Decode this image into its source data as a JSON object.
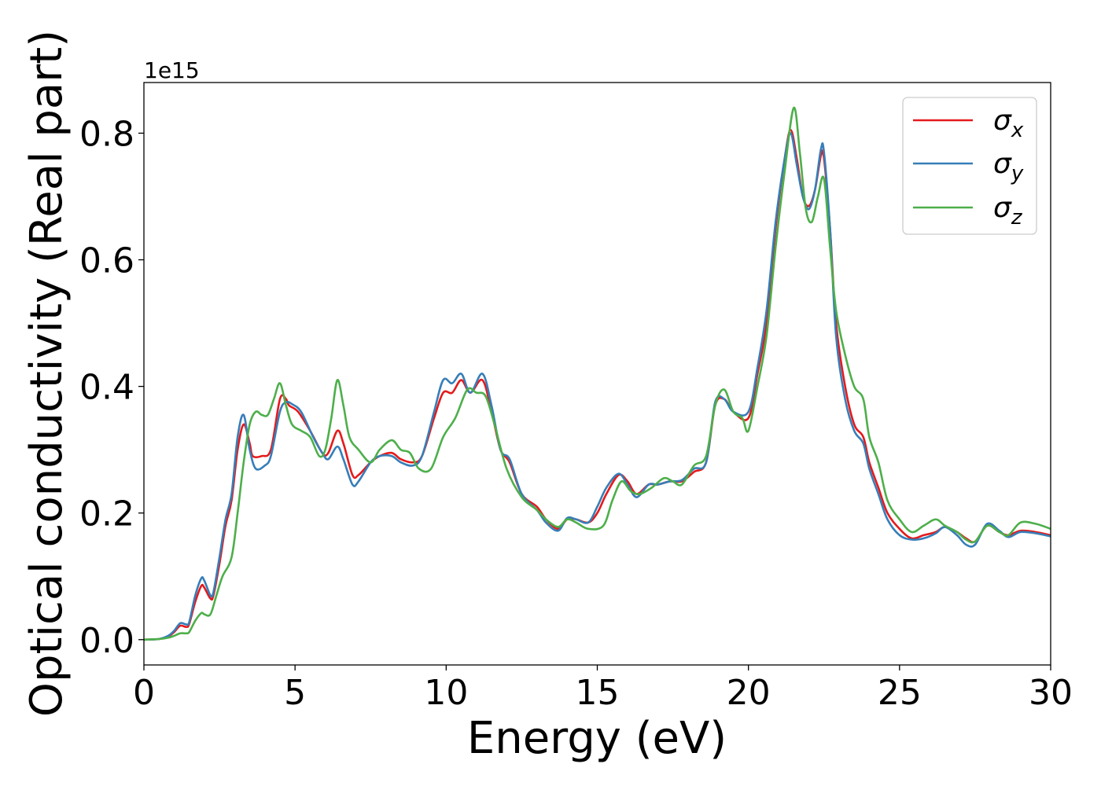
{
  "chart_data": {
    "type": "line",
    "xlabel": "Energy (eV)",
    "ylabel": "Optical conductivity (Real part)",
    "y_offset_label": "1e15",
    "xlim": [
      0,
      30
    ],
    "ylim": [
      -0.04,
      0.88
    ],
    "x_ticks": [
      0,
      5,
      10,
      15,
      20,
      25,
      30
    ],
    "x_tick_labels": [
      "0",
      "5",
      "10",
      "15",
      "20",
      "25",
      "30"
    ],
    "y_ticks": [
      0.0,
      0.2,
      0.4,
      0.6,
      0.8
    ],
    "y_tick_labels": [
      "0.0",
      "0.2",
      "0.4",
      "0.6",
      "0.8"
    ],
    "grid": false,
    "legend_position": "top-right",
    "series": [
      {
        "name": "σx",
        "legend_base": "σ",
        "legend_sub": "x",
        "color": "#e41a1c",
        "points": [
          [
            0,
            0
          ],
          [
            0.5,
            0.001
          ],
          [
            0.8,
            0.005
          ],
          [
            1.0,
            0.012
          ],
          [
            1.2,
            0.022
          ],
          [
            1.4,
            0.02
          ],
          [
            1.5,
            0.025
          ],
          [
            1.7,
            0.06
          ],
          [
            1.9,
            0.085
          ],
          [
            2.0,
            0.082
          ],
          [
            2.2,
            0.065
          ],
          [
            2.3,
            0.07
          ],
          [
            2.5,
            0.12
          ],
          [
            2.7,
            0.18
          ],
          [
            2.9,
            0.22
          ],
          [
            3.1,
            0.3
          ],
          [
            3.3,
            0.34
          ],
          [
            3.5,
            0.31
          ],
          [
            3.6,
            0.29
          ],
          [
            3.9,
            0.29
          ],
          [
            4.2,
            0.3
          ],
          [
            4.5,
            0.38
          ],
          [
            4.7,
            0.38
          ],
          [
            4.8,
            0.37
          ],
          [
            5.1,
            0.36
          ],
          [
            5.5,
            0.33
          ],
          [
            5.9,
            0.295
          ],
          [
            6.1,
            0.295
          ],
          [
            6.4,
            0.33
          ],
          [
            6.6,
            0.31
          ],
          [
            6.9,
            0.26
          ],
          [
            7.1,
            0.26
          ],
          [
            7.5,
            0.28
          ],
          [
            7.8,
            0.29
          ],
          [
            8.2,
            0.295
          ],
          [
            8.5,
            0.285
          ],
          [
            8.9,
            0.28
          ],
          [
            9.2,
            0.29
          ],
          [
            9.6,
            0.35
          ],
          [
            9.9,
            0.39
          ],
          [
            10.2,
            0.39
          ],
          [
            10.5,
            0.41
          ],
          [
            10.8,
            0.39
          ],
          [
            11.2,
            0.41
          ],
          [
            11.5,
            0.36
          ],
          [
            11.8,
            0.3
          ],
          [
            12.1,
            0.28
          ],
          [
            12.5,
            0.23
          ],
          [
            13.0,
            0.21
          ],
          [
            13.3,
            0.19
          ],
          [
            13.7,
            0.175
          ],
          [
            14.0,
            0.19
          ],
          [
            14.3,
            0.19
          ],
          [
            14.7,
            0.185
          ],
          [
            15.0,
            0.2
          ],
          [
            15.3,
            0.23
          ],
          [
            15.7,
            0.26
          ],
          [
            16.0,
            0.25
          ],
          [
            16.3,
            0.23
          ],
          [
            16.7,
            0.245
          ],
          [
            17.0,
            0.245
          ],
          [
            17.4,
            0.25
          ],
          [
            17.8,
            0.25
          ],
          [
            18.2,
            0.265
          ],
          [
            18.6,
            0.28
          ],
          [
            18.9,
            0.37
          ],
          [
            19.2,
            0.38
          ],
          [
            19.5,
            0.36
          ],
          [
            20.0,
            0.35
          ],
          [
            20.3,
            0.42
          ],
          [
            20.6,
            0.5
          ],
          [
            20.9,
            0.65
          ],
          [
            21.2,
            0.76
          ],
          [
            21.4,
            0.805
          ],
          [
            21.6,
            0.76
          ],
          [
            21.8,
            0.7
          ],
          [
            22.0,
            0.685
          ],
          [
            22.2,
            0.71
          ],
          [
            22.4,
            0.765
          ],
          [
            22.5,
            0.76
          ],
          [
            22.7,
            0.65
          ],
          [
            22.9,
            0.5
          ],
          [
            23.2,
            0.4
          ],
          [
            23.5,
            0.34
          ],
          [
            23.8,
            0.32
          ],
          [
            24.0,
            0.28
          ],
          [
            24.3,
            0.24
          ],
          [
            24.6,
            0.2
          ],
          [
            25.0,
            0.175
          ],
          [
            25.4,
            0.16
          ],
          [
            25.8,
            0.165
          ],
          [
            26.2,
            0.17
          ],
          [
            26.5,
            0.178
          ],
          [
            26.9,
            0.17
          ],
          [
            27.2,
            0.16
          ],
          [
            27.5,
            0.155
          ],
          [
            27.9,
            0.18
          ],
          [
            28.3,
            0.17
          ],
          [
            28.6,
            0.165
          ],
          [
            29.0,
            0.172
          ],
          [
            29.5,
            0.17
          ],
          [
            30,
            0.165
          ]
        ]
      },
      {
        "name": "σy",
        "legend_base": "σ",
        "legend_sub": "y",
        "color": "#377eb8",
        "points": [
          [
            0,
            0
          ],
          [
            0.5,
            0.001
          ],
          [
            0.8,
            0.006
          ],
          [
            1.0,
            0.014
          ],
          [
            1.2,
            0.026
          ],
          [
            1.4,
            0.024
          ],
          [
            1.5,
            0.028
          ],
          [
            1.7,
            0.07
          ],
          [
            1.9,
            0.097
          ],
          [
            2.0,
            0.093
          ],
          [
            2.2,
            0.07
          ],
          [
            2.3,
            0.075
          ],
          [
            2.5,
            0.13
          ],
          [
            2.7,
            0.19
          ],
          [
            2.9,
            0.23
          ],
          [
            3.1,
            0.32
          ],
          [
            3.3,
            0.355
          ],
          [
            3.5,
            0.3
          ],
          [
            3.7,
            0.27
          ],
          [
            4.0,
            0.275
          ],
          [
            4.2,
            0.29
          ],
          [
            4.5,
            0.36
          ],
          [
            4.7,
            0.375
          ],
          [
            4.9,
            0.372
          ],
          [
            5.2,
            0.36
          ],
          [
            5.6,
            0.32
          ],
          [
            5.9,
            0.295
          ],
          [
            6.1,
            0.285
          ],
          [
            6.4,
            0.305
          ],
          [
            6.6,
            0.285
          ],
          [
            6.9,
            0.245
          ],
          [
            7.1,
            0.25
          ],
          [
            7.5,
            0.28
          ],
          [
            7.8,
            0.29
          ],
          [
            8.2,
            0.29
          ],
          [
            8.5,
            0.28
          ],
          [
            8.9,
            0.275
          ],
          [
            9.2,
            0.29
          ],
          [
            9.6,
            0.36
          ],
          [
            9.9,
            0.41
          ],
          [
            10.2,
            0.405
          ],
          [
            10.5,
            0.42
          ],
          [
            10.8,
            0.39
          ],
          [
            11.2,
            0.42
          ],
          [
            11.5,
            0.37
          ],
          [
            11.8,
            0.3
          ],
          [
            12.1,
            0.285
          ],
          [
            12.5,
            0.23
          ],
          [
            13.0,
            0.205
          ],
          [
            13.3,
            0.185
          ],
          [
            13.7,
            0.172
          ],
          [
            14.0,
            0.192
          ],
          [
            14.3,
            0.19
          ],
          [
            14.7,
            0.185
          ],
          [
            15.0,
            0.21
          ],
          [
            15.3,
            0.24
          ],
          [
            15.7,
            0.262
          ],
          [
            16.0,
            0.245
          ],
          [
            16.3,
            0.225
          ],
          [
            16.7,
            0.245
          ],
          [
            17.0,
            0.245
          ],
          [
            17.4,
            0.25
          ],
          [
            17.8,
            0.252
          ],
          [
            18.2,
            0.27
          ],
          [
            18.6,
            0.28
          ],
          [
            18.9,
            0.375
          ],
          [
            19.2,
            0.38
          ],
          [
            19.5,
            0.36
          ],
          [
            20.0,
            0.36
          ],
          [
            20.3,
            0.43
          ],
          [
            20.6,
            0.52
          ],
          [
            20.9,
            0.66
          ],
          [
            21.2,
            0.76
          ],
          [
            21.4,
            0.8
          ],
          [
            21.6,
            0.75
          ],
          [
            21.8,
            0.7
          ],
          [
            22.0,
            0.68
          ],
          [
            22.2,
            0.71
          ],
          [
            22.4,
            0.775
          ],
          [
            22.5,
            0.77
          ],
          [
            22.7,
            0.65
          ],
          [
            22.9,
            0.48
          ],
          [
            23.2,
            0.38
          ],
          [
            23.5,
            0.33
          ],
          [
            23.8,
            0.31
          ],
          [
            24.0,
            0.27
          ],
          [
            24.3,
            0.23
          ],
          [
            24.6,
            0.19
          ],
          [
            25.0,
            0.165
          ],
          [
            25.4,
            0.158
          ],
          [
            25.8,
            0.16
          ],
          [
            26.2,
            0.168
          ],
          [
            26.5,
            0.178
          ],
          [
            26.9,
            0.165
          ],
          [
            27.2,
            0.15
          ],
          [
            27.5,
            0.15
          ],
          [
            27.9,
            0.183
          ],
          [
            28.3,
            0.172
          ],
          [
            28.6,
            0.162
          ],
          [
            29.0,
            0.17
          ],
          [
            29.5,
            0.168
          ],
          [
            30,
            0.163
          ]
        ]
      },
      {
        "name": "σz",
        "legend_base": "σ",
        "legend_sub": "z",
        "color": "#4daf4a",
        "points": [
          [
            0,
            0
          ],
          [
            0.5,
            0.001
          ],
          [
            0.8,
            0.003
          ],
          [
            1.0,
            0.006
          ],
          [
            1.2,
            0.01
          ],
          [
            1.4,
            0.01
          ],
          [
            1.5,
            0.012
          ],
          [
            1.7,
            0.03
          ],
          [
            1.9,
            0.042
          ],
          [
            2.0,
            0.04
          ],
          [
            2.2,
            0.04
          ],
          [
            2.4,
            0.07
          ],
          [
            2.6,
            0.1
          ],
          [
            2.9,
            0.13
          ],
          [
            3.1,
            0.2
          ],
          [
            3.3,
            0.28
          ],
          [
            3.5,
            0.34
          ],
          [
            3.7,
            0.36
          ],
          [
            3.9,
            0.355
          ],
          [
            4.1,
            0.355
          ],
          [
            4.3,
            0.38
          ],
          [
            4.5,
            0.405
          ],
          [
            4.7,
            0.37
          ],
          [
            4.9,
            0.34
          ],
          [
            5.2,
            0.33
          ],
          [
            5.5,
            0.32
          ],
          [
            5.8,
            0.29
          ],
          [
            6.0,
            0.3
          ],
          [
            6.2,
            0.35
          ],
          [
            6.4,
            0.41
          ],
          [
            6.6,
            0.37
          ],
          [
            6.8,
            0.32
          ],
          [
            7.1,
            0.3
          ],
          [
            7.5,
            0.28
          ],
          [
            7.8,
            0.3
          ],
          [
            8.2,
            0.315
          ],
          [
            8.5,
            0.3
          ],
          [
            8.8,
            0.295
          ],
          [
            9.1,
            0.27
          ],
          [
            9.5,
            0.27
          ],
          [
            9.9,
            0.32
          ],
          [
            10.3,
            0.35
          ],
          [
            10.7,
            0.395
          ],
          [
            11.0,
            0.39
          ],
          [
            11.3,
            0.385
          ],
          [
            11.6,
            0.34
          ],
          [
            12.0,
            0.27
          ],
          [
            12.5,
            0.225
          ],
          [
            13.0,
            0.205
          ],
          [
            13.3,
            0.19
          ],
          [
            13.7,
            0.178
          ],
          [
            14.0,
            0.19
          ],
          [
            14.3,
            0.185
          ],
          [
            14.7,
            0.175
          ],
          [
            15.2,
            0.18
          ],
          [
            15.5,
            0.22
          ],
          [
            15.8,
            0.25
          ],
          [
            16.1,
            0.235
          ],
          [
            16.4,
            0.23
          ],
          [
            16.8,
            0.24
          ],
          [
            17.2,
            0.255
          ],
          [
            17.5,
            0.25
          ],
          [
            17.8,
            0.245
          ],
          [
            18.2,
            0.275
          ],
          [
            18.6,
            0.29
          ],
          [
            18.9,
            0.37
          ],
          [
            19.2,
            0.395
          ],
          [
            19.5,
            0.36
          ],
          [
            19.8,
            0.35
          ],
          [
            20.0,
            0.33
          ],
          [
            20.3,
            0.4
          ],
          [
            20.6,
            0.48
          ],
          [
            20.9,
            0.62
          ],
          [
            21.2,
            0.74
          ],
          [
            21.5,
            0.84
          ],
          [
            21.7,
            0.77
          ],
          [
            21.9,
            0.68
          ],
          [
            22.1,
            0.66
          ],
          [
            22.3,
            0.7
          ],
          [
            22.5,
            0.728
          ],
          [
            22.7,
            0.62
          ],
          [
            22.9,
            0.52
          ],
          [
            23.2,
            0.45
          ],
          [
            23.5,
            0.4
          ],
          [
            23.8,
            0.38
          ],
          [
            24.0,
            0.32
          ],
          [
            24.3,
            0.28
          ],
          [
            24.6,
            0.22
          ],
          [
            25.0,
            0.19
          ],
          [
            25.4,
            0.17
          ],
          [
            25.8,
            0.18
          ],
          [
            26.2,
            0.19
          ],
          [
            26.5,
            0.18
          ],
          [
            26.9,
            0.17
          ],
          [
            27.2,
            0.158
          ],
          [
            27.5,
            0.155
          ],
          [
            27.9,
            0.18
          ],
          [
            28.3,
            0.17
          ],
          [
            28.6,
            0.165
          ],
          [
            29.0,
            0.185
          ],
          [
            29.5,
            0.183
          ],
          [
            30,
            0.175
          ]
        ]
      }
    ]
  }
}
